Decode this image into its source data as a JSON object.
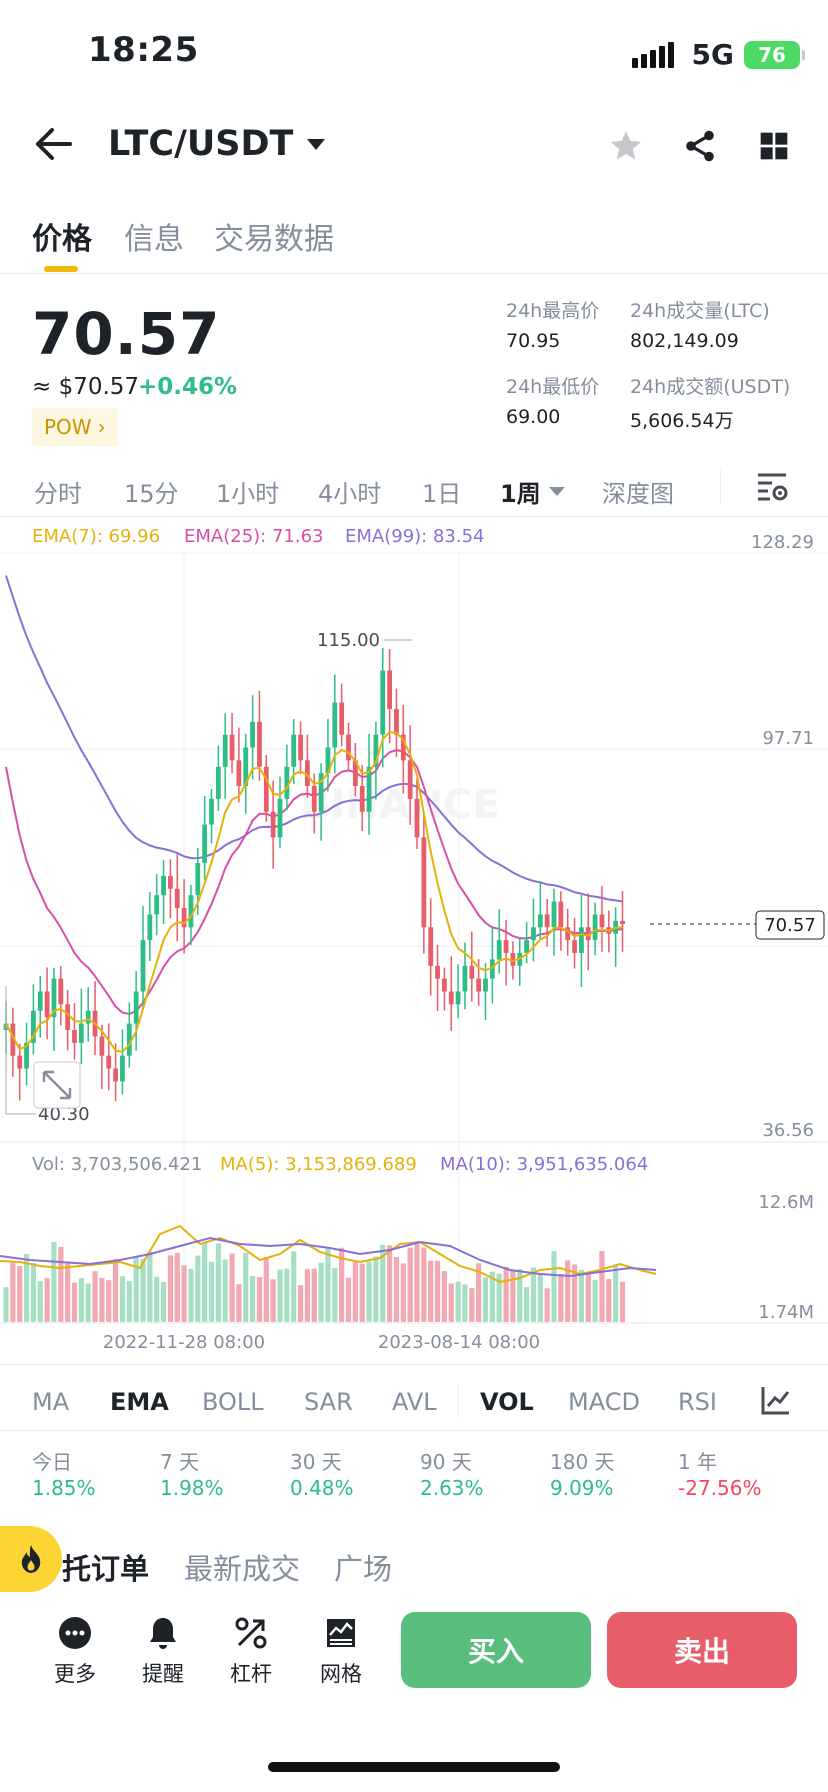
{
  "status_bar": {
    "time": "18:25",
    "network": "5G",
    "battery": "76"
  },
  "header": {
    "pair": "LTC/USDT"
  },
  "tabs": [
    {
      "label": "价格"
    },
    {
      "label": "信息"
    },
    {
      "label": "交易数据"
    }
  ],
  "price": {
    "last": "70.57",
    "fiat": "≈ $70.57",
    "change": "+0.46%",
    "tag": "POW",
    "stats": {
      "high_label": "24h最高价",
      "high": "70.95",
      "low_label": "24h最低价",
      "low": "69.00",
      "vol_ltc_label": "24h成交量(LTC)",
      "vol_ltc": "802,149.09",
      "vol_usdt_label": "24h成交额(USDT)",
      "vol_usdt": "5,606.54万"
    }
  },
  "intervals": [
    "分时",
    "15分",
    "1小时",
    "4小时",
    "1日",
    "1周",
    "深度图"
  ],
  "active_interval": "1周",
  "chart_data": {
    "type": "candlestick",
    "ema_legend": [
      {
        "label": "EMA(7): 69.96",
        "color": "#e3b20b"
      },
      {
        "label": "EMA(25): 71.63",
        "color": "#d84fab"
      },
      {
        "label": "EMA(99): 83.54",
        "color": "#8a6fd6"
      }
    ],
    "y_ticks": [
      "128.29",
      "97.71",
      "36.56"
    ],
    "ylim": [
      36.56,
      128.29
    ],
    "current_price": "70.57",
    "max_label": "115.00",
    "min_label": "40.30",
    "x_ticks": [
      "2022-11-28 08:00",
      "2023-08-14 08:00"
    ],
    "closes": [
      55,
      50,
      48,
      52,
      57,
      60,
      56,
      62,
      58,
      54,
      52,
      55,
      57,
      53,
      50,
      48,
      46,
      50,
      55,
      60,
      68,
      72,
      75,
      78,
      76,
      73,
      70,
      75,
      80,
      86,
      90,
      95,
      100,
      96,
      92,
      98,
      102,
      95,
      88,
      84,
      90,
      95,
      100,
      96,
      92,
      88,
      94,
      98,
      105,
      100,
      96,
      92,
      88,
      95,
      100,
      110,
      104,
      100,
      96,
      90,
      84,
      70,
      64,
      62,
      60,
      58,
      60,
      64,
      62,
      60,
      62,
      65,
      68,
      66,
      64,
      66,
      68,
      70,
      72,
      70,
      74,
      70,
      68,
      66,
      70,
      68,
      72,
      70,
      69,
      71,
      70.5
    ],
    "ema7": [
      55,
      53,
      51,
      51.5,
      53,
      55,
      55.5,
      57,
      57.3,
      56.5,
      55.4,
      55.3,
      55.7,
      55,
      53.8,
      52.4,
      50.8,
      50.6,
      51.7,
      53.8,
      57.3,
      61,
      64.5,
      68,
      70,
      70.8,
      70.6,
      71.7,
      73.8,
      76.8,
      80.1,
      83.8,
      87.9,
      89.9,
      90.4,
      92.3,
      94.7,
      94.8,
      93.1,
      90.8,
      90.6,
      91.7,
      93.8,
      94.3,
      93.7,
      92.3,
      92.7,
      94,
      96.8,
      97.6,
      97.2,
      95.9,
      93.9,
      94.2,
      95.7,
      99.3,
      100.4,
      100.3,
      99.2,
      96.9,
      93.7,
      87.8,
      81.8,
      76.9,
      72.6,
      68.9,
      66.7,
      66,
      65,
      63.7,
      63.3,
      63.7,
      64.8,
      65.1,
      64.8,
      65.1,
      65.8,
      66.9,
      68.1,
      68.6,
      69.9,
      69.9,
      69.4,
      68.6,
      68.9,
      68.7,
      69.5,
      69.6,
      69.5,
      69.9,
      70
    ]
  },
  "volume": {
    "legend": [
      {
        "label": "Vol: 3,703,506.421",
        "color": "#848e9c"
      },
      {
        "label": "MA(5): 3,153,869.689",
        "color": "#e3b20b"
      },
      {
        "label": "MA(10): 3,951,635.064",
        "color": "#8a6fd6"
      }
    ],
    "y_ticks": [
      "12.6M",
      "1.74M"
    ]
  },
  "indicators": [
    "MA",
    "EMA",
    "BOLL",
    "SAR",
    "AVL",
    "VOL",
    "MACD",
    "RSI"
  ],
  "performance": [
    {
      "label": "今日",
      "value": "1.85%",
      "color": "#2ebd85"
    },
    {
      "label": "7 天",
      "value": "1.98%",
      "color": "#2ebd85"
    },
    {
      "label": "30 天",
      "value": "0.48%",
      "color": "#2ebd85"
    },
    {
      "label": "90 天",
      "value": "2.63%",
      "color": "#2ebd85"
    },
    {
      "label": "180 天",
      "value": "9.09%",
      "color": "#2ebd85"
    },
    {
      "label": "1 年",
      "value": "-27.56%",
      "color": "#f6465d"
    }
  ],
  "bottom_tabs": [
    "托订单",
    "最新成交",
    "广场"
  ],
  "footer": {
    "more": "更多",
    "alert": "提醒",
    "leverage": "杠杆",
    "grid": "网格",
    "buy": "买入",
    "sell": "卖出"
  }
}
